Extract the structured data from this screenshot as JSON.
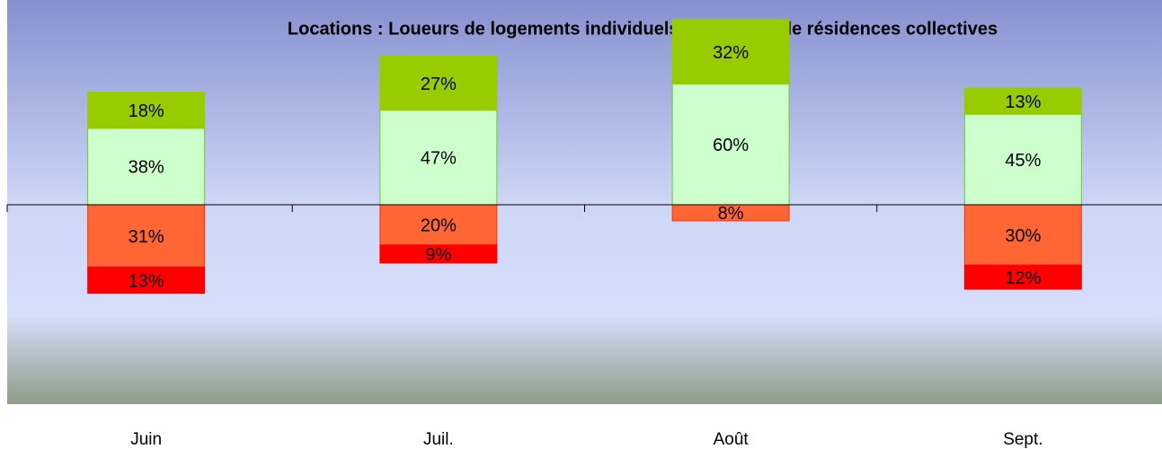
{
  "chart_data": {
    "type": "bar",
    "stacked": true,
    "title": "Locations : Loueurs de logements individuels et Loueurs de résidences collectives",
    "categories": [
      "Juin",
      "Juil.",
      "Août",
      "Sept."
    ],
    "ylim": [
      -100,
      100
    ],
    "series": [
      {
        "color": "#ccffcc",
        "values": [
          38,
          47,
          60,
          45
        ],
        "value_labels": [
          "38%",
          "47%",
          "60%",
          "45%"
        ]
      },
      {
        "color": "#99cc00",
        "values": [
          18,
          27,
          32,
          13
        ],
        "value_labels": [
          "18%",
          "27%",
          "32%",
          "13%"
        ]
      },
      {
        "color": "#ff6633",
        "values": [
          -31,
          -20,
          -8,
          -30
        ],
        "value_labels": [
          "31%",
          "20%",
          "8%",
          "30%"
        ]
      },
      {
        "color": "#ff0000",
        "values": [
          -13,
          -9,
          null,
          -12
        ],
        "value_labels": [
          "13%",
          "9%",
          null,
          "12%"
        ]
      }
    ]
  }
}
